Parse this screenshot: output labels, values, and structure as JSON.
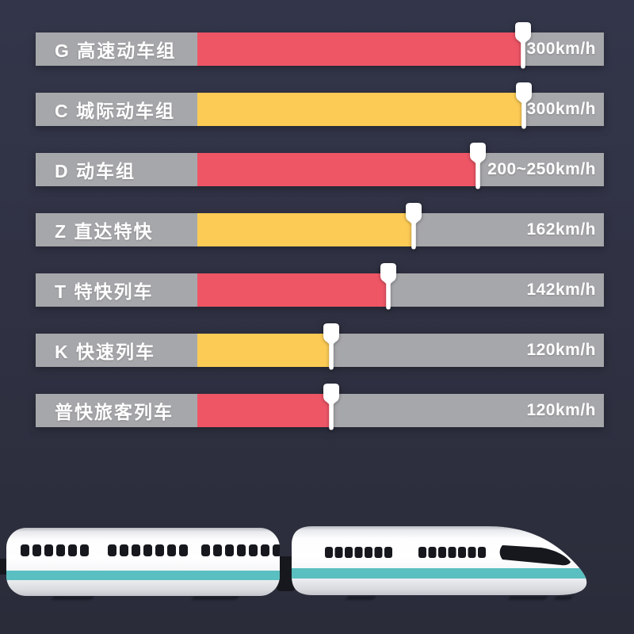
{
  "page": {
    "background_top": "#33364a",
    "background_bottom": "#2a2c3a",
    "track_gray": "#a6a7aa",
    "marker_color": "#ffffff",
    "text_color": "#ffffff"
  },
  "chart": {
    "rows": [
      {
        "label": "G 高速动车组",
        "speed": "300km/h",
        "color": "#ee5666",
        "fill_pct": 80.1
      },
      {
        "label": "C 城际动车组",
        "speed": "300km/h",
        "color": "#fccb55",
        "fill_pct": 80.3
      },
      {
        "label": "D 动车组",
        "speed": "200~250km/h",
        "color": "#ee5666",
        "fill_pct": 69.0
      },
      {
        "label": "Z 直达特快",
        "speed": "162km/h",
        "color": "#fccb55",
        "fill_pct": 53.2
      },
      {
        "label": "T 特快列车",
        "speed": "142km/h",
        "color": "#ee5666",
        "fill_pct": 47.0
      },
      {
        "label": "K 快速列车",
        "speed": "120km/h",
        "color": "#fccb55",
        "fill_pct": 33.0
      },
      {
        "label": "普快旅客列车",
        "speed": "120km/h",
        "color": "#ee5666",
        "fill_pct": 32.9
      }
    ]
  },
  "chart_data": {
    "type": "bar",
    "orientation": "horizontal",
    "categories": [
      "G 高速动车组",
      "C 城际动车组",
      "D 动车组",
      "Z 直达特快",
      "T 特快列车",
      "K 快速列车",
      "普快旅客列车"
    ],
    "values": [
      300,
      300,
      250,
      162,
      142,
      120,
      120
    ],
    "value_labels": [
      "300km/h",
      "300km/h",
      "200~250km/h",
      "162km/h",
      "142km/h",
      "120km/h",
      "120km/h"
    ],
    "bar_colors": [
      "#ee5666",
      "#fccb55",
      "#ee5666",
      "#fccb55",
      "#ee5666",
      "#fccb55",
      "#ee5666"
    ],
    "title": "",
    "xlabel": "",
    "ylabel": "",
    "legend": "none",
    "grid": false
  },
  "illustration": {
    "body_color": "#ffffff",
    "stripe_color": "#5abfc0",
    "window_color": "#17181d",
    "left_car_window_groups": [
      6,
      7,
      7
    ],
    "head_car_window_groups": [
      7,
      7
    ]
  }
}
